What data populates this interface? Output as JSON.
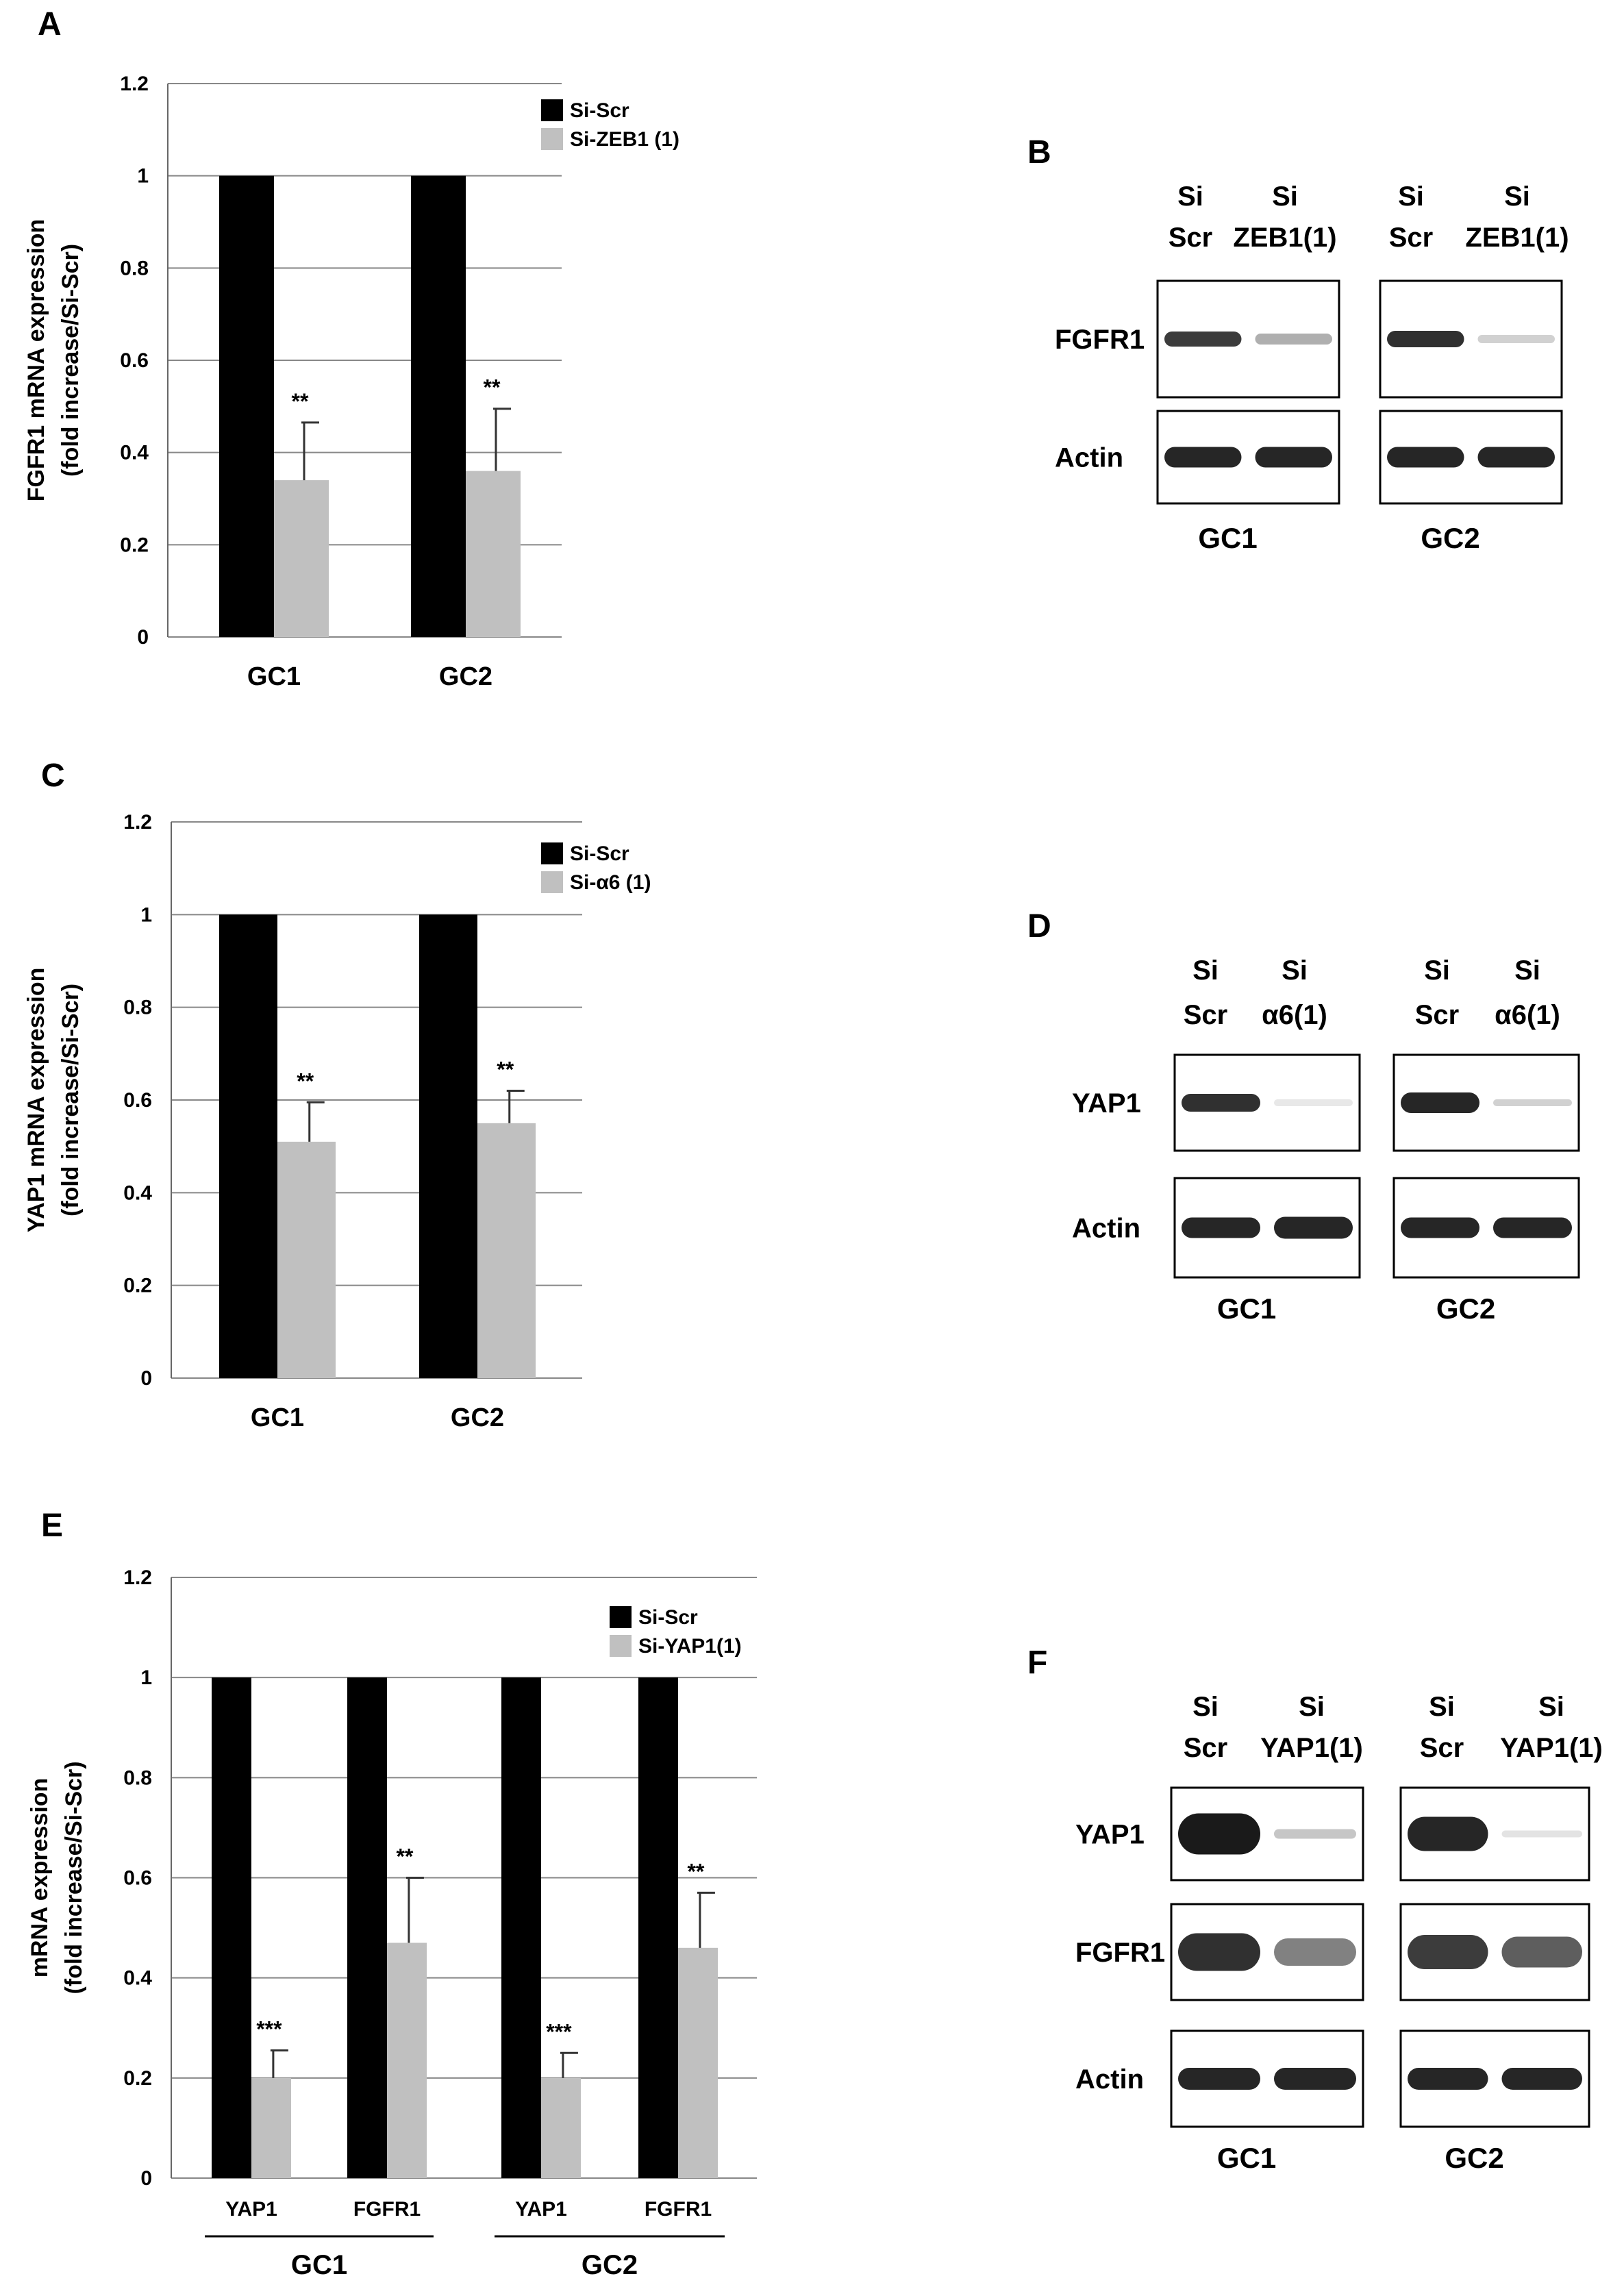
{
  "colors": {
    "si_scr": "#000000",
    "si_knockdown": "#c0c0c0",
    "grid": "#888888",
    "band": "#1a1a1a"
  },
  "panels": {
    "A": "A",
    "B": "B",
    "C": "C",
    "D": "D",
    "E": "E",
    "F": "F"
  },
  "chart_data": [
    {
      "id": "A",
      "type": "bar",
      "ylabel_line1": "FGFR1  mRNA expression",
      "ylabel_line2": "(fold increase/Si-Scr)",
      "ylim": [
        0,
        1.2
      ],
      "yticks": [
        "0",
        "0.2",
        "0.4",
        "0.6",
        "0.8",
        "1",
        "1.2"
      ],
      "grid": true,
      "legend_position": "top-right",
      "categories": [
        "GC1",
        "GC2"
      ],
      "series": [
        {
          "name": "Si-Scr",
          "values": [
            1.0,
            1.0
          ],
          "errors": [
            null,
            null
          ],
          "stars": [
            "",
            ""
          ]
        },
        {
          "name": "Si-ZEB1 (1)",
          "values": [
            0.34,
            0.36
          ],
          "errors": [
            0.125,
            0.135
          ],
          "stars": [
            "**",
            "**"
          ]
        }
      ]
    },
    {
      "id": "C",
      "type": "bar",
      "ylabel_line1": "YAP1 mRNA expression",
      "ylabel_line2": "(fold increase/Si-Scr)",
      "ylim": [
        0,
        1.2
      ],
      "yticks": [
        "0",
        "0.2",
        "0.4",
        "0.6",
        "0.8",
        "1",
        "1.2"
      ],
      "grid": true,
      "legend_position": "top-right",
      "categories": [
        "GC1",
        "GC2"
      ],
      "series": [
        {
          "name": "Si-Scr",
          "values": [
            1.0,
            1.0
          ],
          "errors": [
            null,
            null
          ],
          "stars": [
            "",
            ""
          ]
        },
        {
          "name": "Si-α6 (1)",
          "values": [
            0.51,
            0.55
          ],
          "errors": [
            0.085,
            0.07
          ],
          "stars": [
            "**",
            "**"
          ]
        }
      ]
    },
    {
      "id": "E",
      "type": "bar",
      "ylabel_line1": "mRNA expression",
      "ylabel_line2": "(fold increase/Si-Scr)",
      "ylim": [
        0,
        1.2
      ],
      "yticks": [
        "0",
        "0.2",
        "0.4",
        "0.6",
        "0.8",
        "1",
        "1.2"
      ],
      "grid": true,
      "legend_position": "top-right",
      "categories": [
        "YAP1",
        "FGFR1",
        "YAP1",
        "FGFR1"
      ],
      "groups": [
        {
          "label": "GC1",
          "categories": [
            0,
            1
          ]
        },
        {
          "label": "GC2",
          "categories": [
            2,
            3
          ]
        }
      ],
      "series": [
        {
          "name": "Si-Scr",
          "values": [
            1.0,
            1.0,
            1.0,
            1.0
          ],
          "errors": [
            null,
            null,
            null,
            null
          ],
          "stars": [
            "",
            "",
            "",
            ""
          ]
        },
        {
          "name": "Si-YAP1(1)",
          "values": [
            0.2,
            0.47,
            0.2,
            0.46
          ],
          "errors": [
            0.055,
            0.13,
            0.05,
            0.11
          ],
          "stars": [
            "***",
            "**",
            "***",
            "**"
          ]
        }
      ]
    }
  ],
  "blots": {
    "B": {
      "lanes": [
        {
          "top": "Si",
          "bottom": "Scr"
        },
        {
          "top": "Si",
          "bottom": "ZEB1(1)"
        },
        {
          "top": "Si",
          "bottom": "Scr"
        },
        {
          "top": "Si",
          "bottom": "ZEB1(1)"
        }
      ],
      "rows": [
        "FGFR1",
        "Actin"
      ],
      "cells": [
        "GC1",
        "GC2"
      ]
    },
    "D": {
      "lanes": [
        {
          "top": "Si",
          "bottom": "Scr"
        },
        {
          "top": "Si",
          "bottom": "α6(1)"
        },
        {
          "top": "Si",
          "bottom": "Scr"
        },
        {
          "top": "Si",
          "bottom": "α6(1)"
        }
      ],
      "rows": [
        "YAP1",
        "Actin"
      ],
      "cells": [
        "GC1",
        "GC2"
      ]
    },
    "F": {
      "lanes": [
        {
          "top": "Si",
          "bottom": "Scr"
        },
        {
          "top": "Si",
          "bottom": "YAP1(1)"
        },
        {
          "top": "Si",
          "bottom": "Scr"
        },
        {
          "top": "Si",
          "bottom": "YAP1(1)"
        }
      ],
      "rows": [
        "YAP1",
        "FGFR1",
        "Actin"
      ],
      "cells": [
        "GC1",
        "GC2"
      ]
    }
  }
}
